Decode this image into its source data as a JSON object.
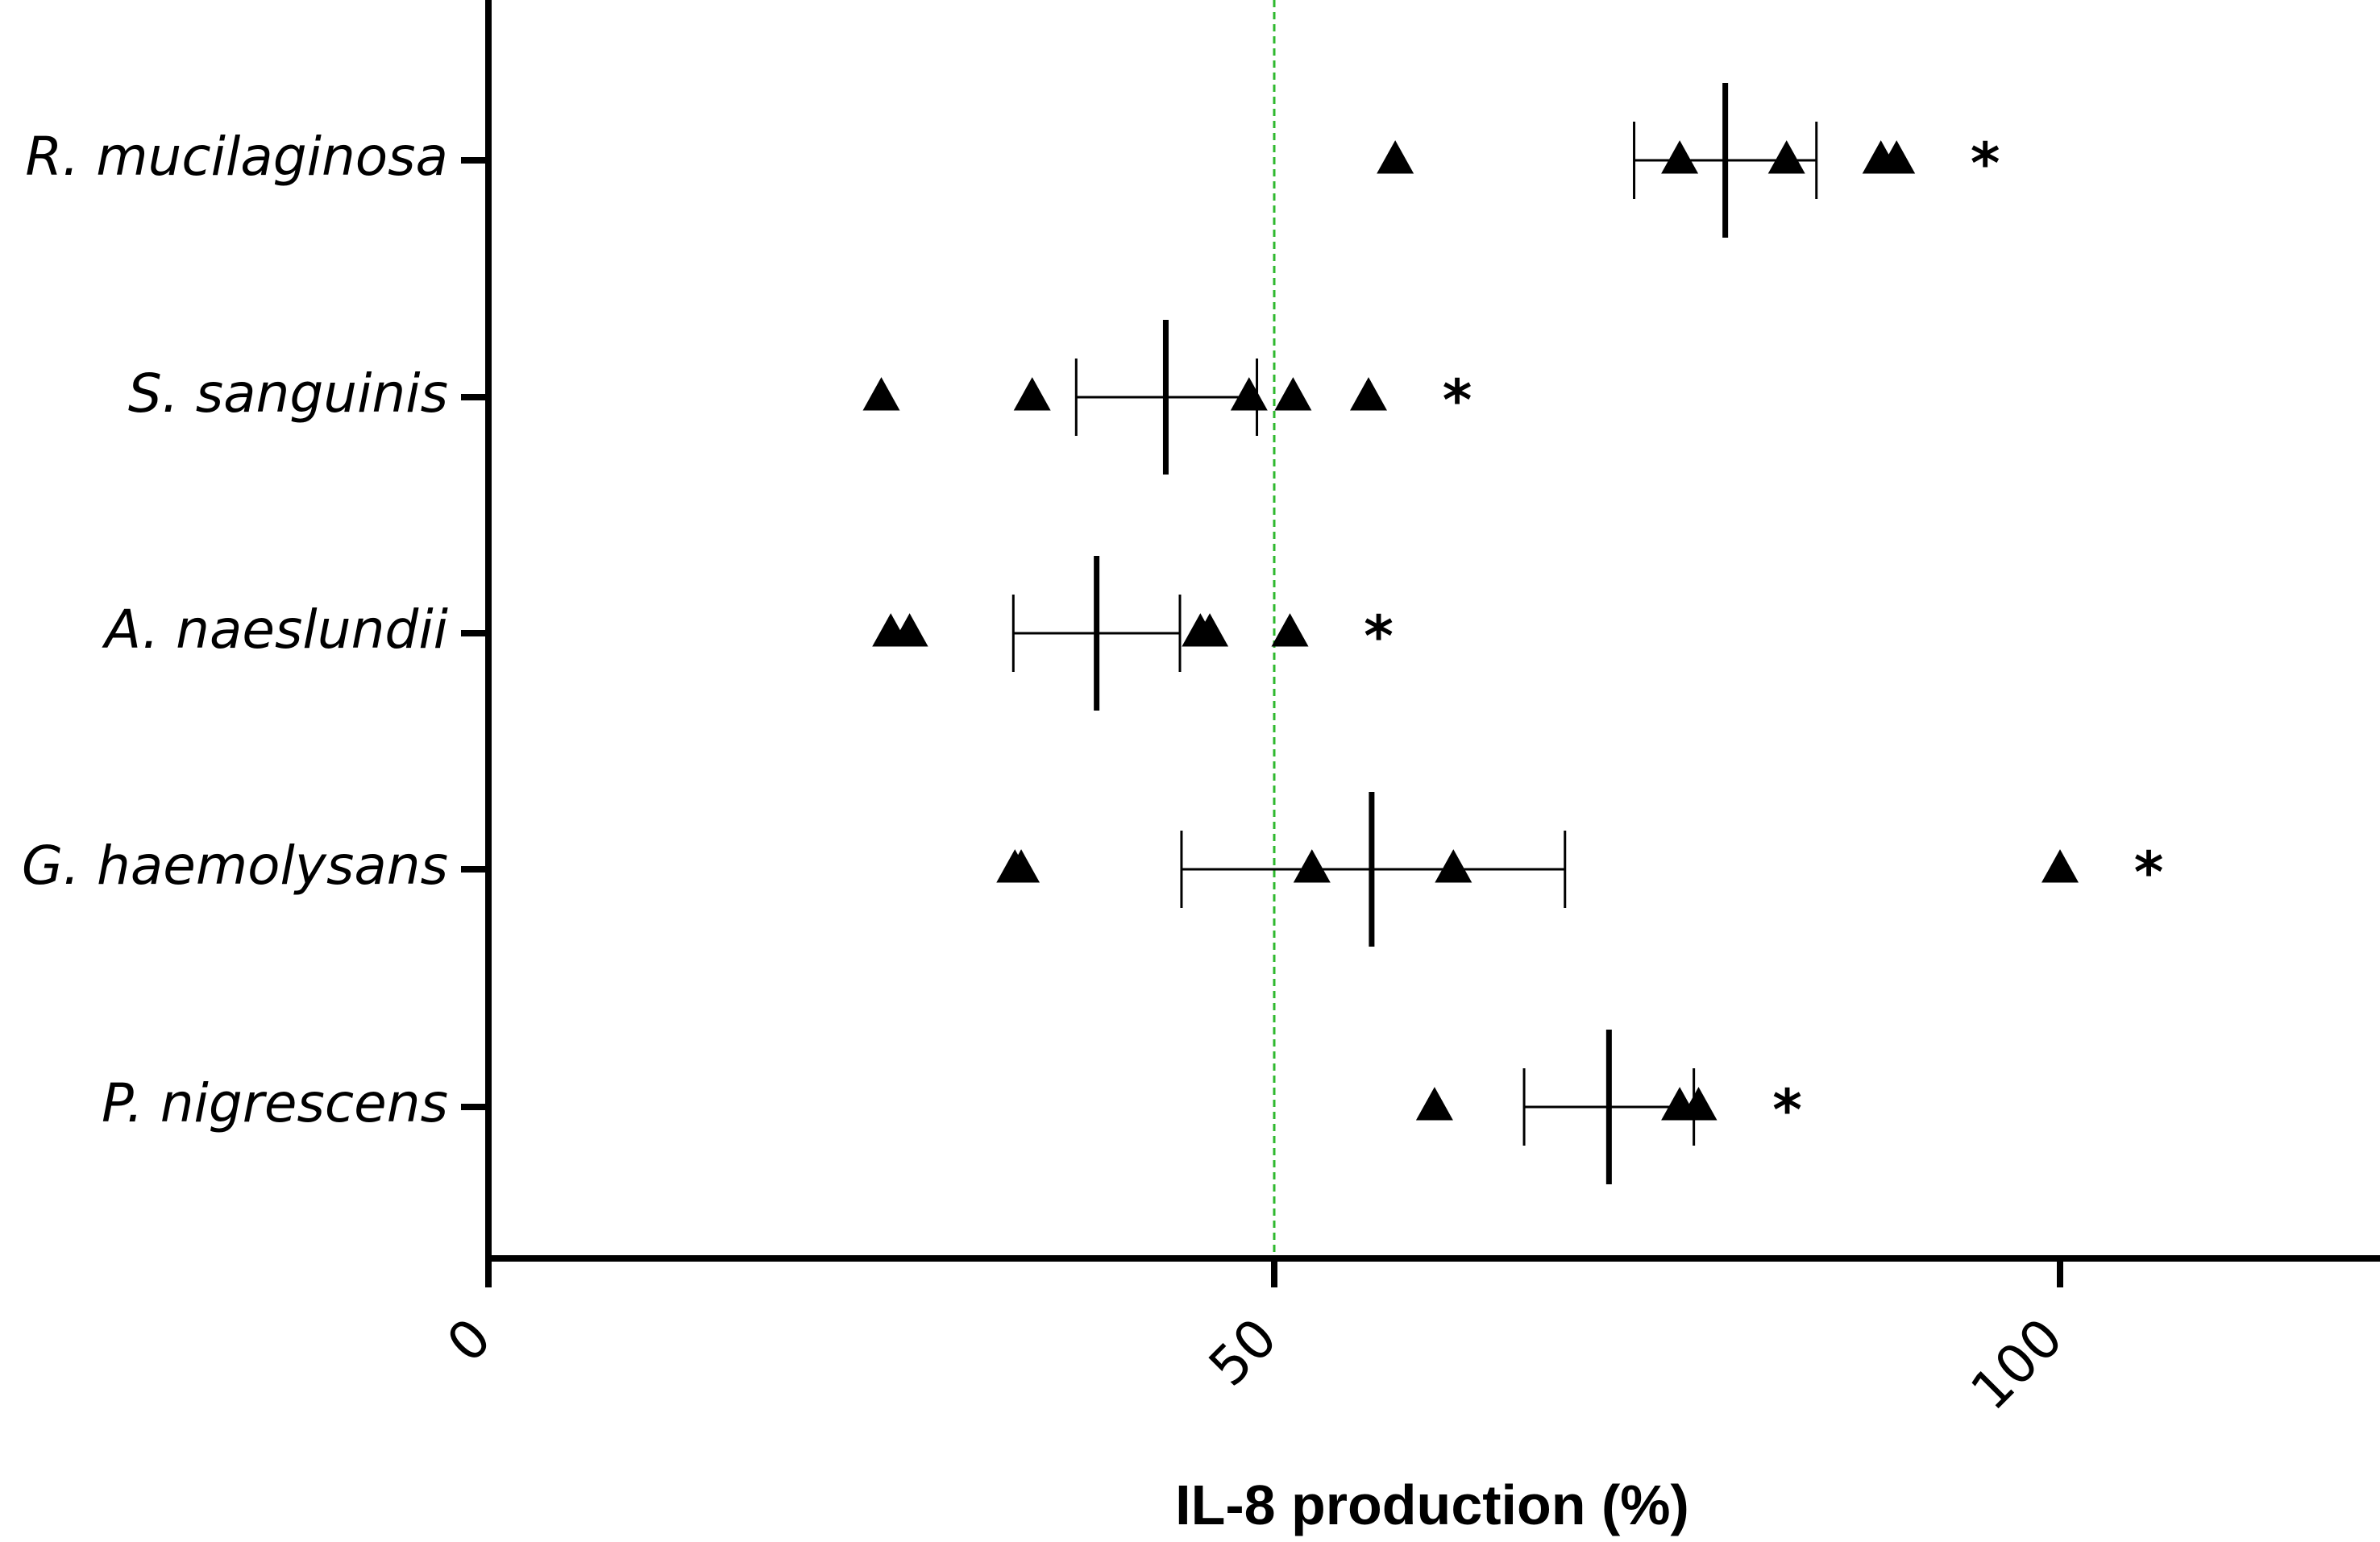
{
  "chart_data": {
    "type": "scatter",
    "orientation": "horizontal",
    "xlabel": "IL-8 production (%)",
    "xlim": [
      0,
      120
    ],
    "xticks": [
      0,
      50,
      100
    ],
    "reference_line": {
      "x": 50,
      "color": "#2eb82e",
      "style": "dashed"
    },
    "marker": "triangle",
    "marker_color": "#000000",
    "grid": false,
    "categories": [
      {
        "name": "R. mucilaginosa",
        "points": [
          57.7,
          75.8,
          82.6,
          88.6,
          89.6
        ],
        "mean": 78.7,
        "error": [
          72.9,
          84.5
        ],
        "significance": "*"
      },
      {
        "name": "S. sanguinis",
        "points": [
          25.0,
          34.6,
          48.4,
          51.2,
          56.0
        ],
        "mean": 43.1,
        "error": [
          37.4,
          48.9
        ],
        "significance": "*"
      },
      {
        "name": "A. naeslundii",
        "points": [
          25.6,
          26.8,
          45.3,
          45.9,
          51.0
        ],
        "mean": 38.7,
        "error": [
          33.4,
          44.0
        ],
        "significance": "*"
      },
      {
        "name": "G. haemolysans",
        "points": [
          33.5,
          33.9,
          52.4,
          61.4,
          100.0
        ],
        "mean": 56.2,
        "error": [
          44.1,
          68.5
        ],
        "significance": "*"
      },
      {
        "name": "P. nigrescens",
        "points": [
          60.2,
          75.8,
          77.0
        ],
        "mean": 71.3,
        "error": [
          65.9,
          76.7
        ],
        "significance": "*"
      }
    ]
  }
}
